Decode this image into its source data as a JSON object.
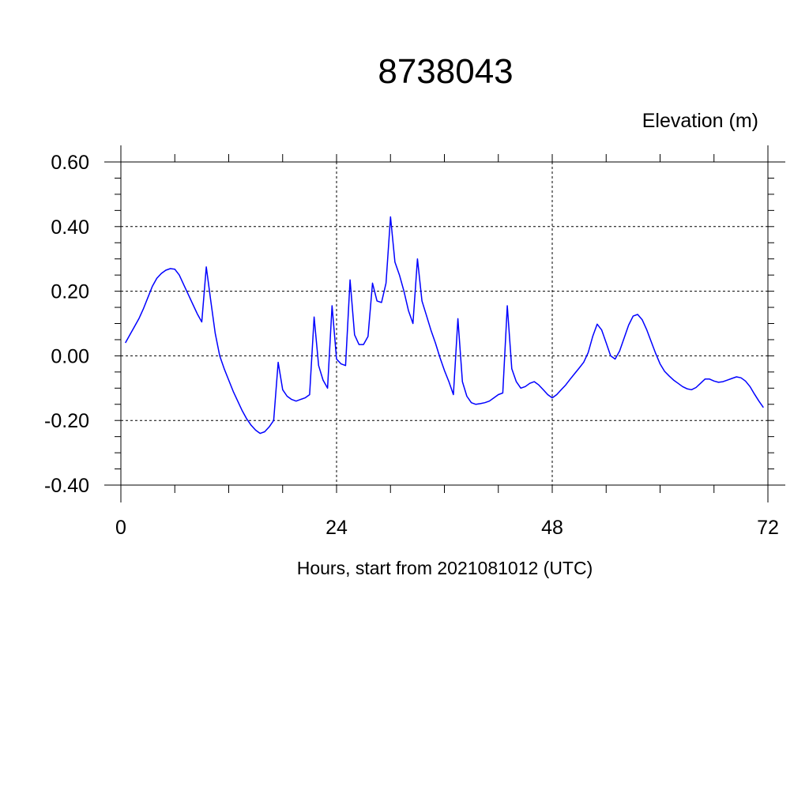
{
  "chart_data": {
    "type": "line",
    "title": "8738043",
    "ylabel": "Elevation (m)",
    "xlabel": "Hours, start from 2021081012 (UTC)",
    "xlim": [
      0,
      72
    ],
    "ylim": [
      -0.4,
      0.6
    ],
    "x_ticks": [
      0,
      24,
      48,
      72
    ],
    "x_tick_labels": [
      "0",
      "24",
      "48",
      "72"
    ],
    "y_ticks": [
      0.6,
      0.4,
      0.2,
      0.0,
      -0.2,
      -0.4
    ],
    "y_tick_labels": [
      "0.60",
      "0.40",
      "0.20",
      "0.00",
      "-0.20",
      "-0.40"
    ],
    "grid": true,
    "line_color": "#0000ff",
    "series": [
      {
        "x": [
          0.5,
          1.0,
          1.5,
          2.0,
          2.5,
          3.0,
          3.5,
          4.0,
          4.5,
          5.0,
          5.5,
          6.0,
          6.5,
          7.0,
          7.5,
          8.0,
          8.5,
          9.0,
          9.5,
          10.0,
          10.5,
          11.0,
          11.5,
          12.0,
          12.5,
          13.0,
          13.5,
          14.0,
          14.5,
          15.0,
          15.5,
          16.0,
          16.5,
          17.0,
          17.5,
          18.0,
          18.5,
          19.0,
          19.5,
          20.0,
          20.5,
          21.0,
          21.5,
          22.0,
          22.5,
          23.0,
          23.5,
          24.0,
          24.5,
          25.0,
          25.5,
          26.0,
          26.5,
          27.0,
          27.5,
          28.0,
          28.5,
          29.0,
          29.5,
          30.0,
          30.5,
          31.0,
          31.5,
          32.0,
          32.5,
          33.0,
          33.5,
          34.0,
          34.5,
          35.0,
          35.5,
          36.0,
          36.5,
          37.0,
          37.5,
          38.0,
          38.5,
          39.0,
          39.5,
          40.0,
          40.5,
          41.0,
          41.5,
          42.0,
          42.5,
          43.0,
          43.5,
          44.0,
          44.5,
          45.0,
          45.5,
          46.0,
          46.5,
          47.0,
          47.5,
          48.0,
          48.5,
          49.0,
          49.5,
          50.0,
          50.5,
          51.0,
          51.5,
          52.0,
          52.5,
          53.0,
          53.5,
          54.0,
          54.5,
          55.0,
          55.5,
          56.0,
          56.5,
          57.0,
          57.5,
          58.0,
          58.5,
          59.0,
          59.5,
          60.0,
          60.5,
          61.0,
          61.5,
          62.0,
          62.5,
          63.0,
          63.5,
          64.0,
          64.5,
          65.0,
          65.5,
          66.0,
          66.5,
          67.0,
          67.5,
          68.0,
          68.5,
          69.0,
          69.5,
          70.0,
          70.5,
          71.0,
          71.5
        ],
        "y": [
          0.04,
          0.065,
          0.09,
          0.115,
          0.145,
          0.18,
          0.215,
          0.24,
          0.255,
          0.265,
          0.27,
          0.268,
          0.25,
          0.22,
          0.19,
          0.16,
          0.13,
          0.105,
          0.275,
          0.17,
          0.07,
          0.0,
          -0.04,
          -0.075,
          -0.11,
          -0.14,
          -0.17,
          -0.195,
          -0.215,
          -0.23,
          -0.24,
          -0.235,
          -0.22,
          -0.2,
          -0.02,
          -0.105,
          -0.125,
          -0.135,
          -0.14,
          -0.135,
          -0.13,
          -0.12,
          0.12,
          -0.03,
          -0.075,
          -0.1,
          0.155,
          -0.01,
          -0.025,
          -0.03,
          0.235,
          0.065,
          0.035,
          0.035,
          0.06,
          0.225,
          0.17,
          0.165,
          0.225,
          0.43,
          0.29,
          0.25,
          0.2,
          0.14,
          0.1,
          0.3,
          0.17,
          0.125,
          0.08,
          0.04,
          -0.005,
          -0.045,
          -0.08,
          -0.12,
          0.115,
          -0.08,
          -0.125,
          -0.145,
          -0.15,
          -0.148,
          -0.145,
          -0.14,
          -0.13,
          -0.12,
          -0.115,
          0.155,
          -0.04,
          -0.08,
          -0.1,
          -0.095,
          -0.085,
          -0.08,
          -0.09,
          -0.105,
          -0.12,
          -0.13,
          -0.12,
          -0.105,
          -0.09,
          -0.072,
          -0.055,
          -0.038,
          -0.02,
          0.01,
          0.06,
          0.098,
          0.08,
          0.04,
          0.0,
          -0.01,
          0.015,
          0.055,
          0.095,
          0.123,
          0.128,
          0.112,
          0.082,
          0.045,
          0.008,
          -0.025,
          -0.048,
          -0.062,
          -0.075,
          -0.085,
          -0.095,
          -0.102,
          -0.105,
          -0.098,
          -0.085,
          -0.072,
          -0.072,
          -0.078,
          -0.082,
          -0.08,
          -0.075,
          -0.07,
          -0.065,
          -0.068,
          -0.078,
          -0.095,
          -0.118,
          -0.14,
          -0.16
        ]
      }
    ]
  }
}
